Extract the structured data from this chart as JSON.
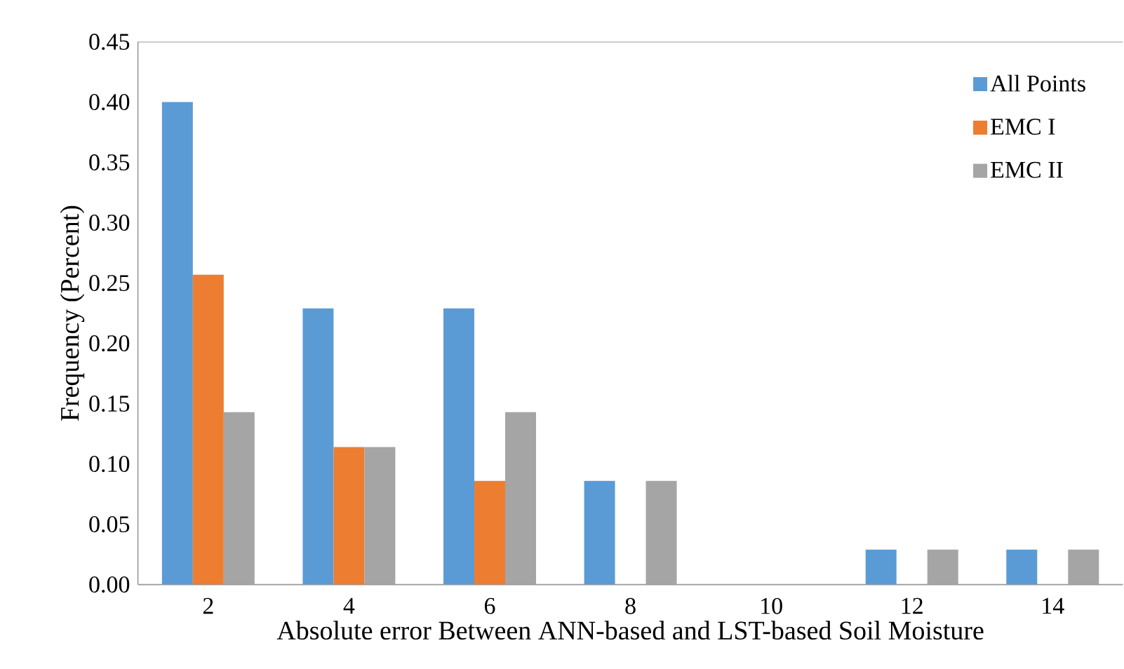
{
  "chart_data": {
    "type": "bar",
    "xlabel": "Absolute error Between ANN-based and LST-based Soil Moisture",
    "ylabel": "Frequency (Percent)",
    "categories": [
      "2",
      "4",
      "6",
      "8",
      "10",
      "12",
      "14"
    ],
    "series": [
      {
        "name": "All Points",
        "color": "#5b9bd5",
        "values": [
          0.4,
          0.229,
          0.229,
          0.086,
          0,
          0.029,
          0.029
        ]
      },
      {
        "name": "EMC I",
        "color": "#ed7d31",
        "values": [
          0.257,
          0.114,
          0.086,
          0,
          0,
          0,
          0
        ]
      },
      {
        "name": "EMC II",
        "color": "#a5a5a5",
        "values": [
          0.143,
          0.114,
          0.143,
          0.086,
          0,
          0.029,
          0.029
        ]
      }
    ],
    "ylim": [
      0,
      0.45
    ],
    "yticks": [
      {
        "value": 0,
        "label": "0.00"
      },
      {
        "value": 0.05,
        "label": "0.05"
      },
      {
        "value": 0.1,
        "label": "0.10"
      },
      {
        "value": 0.15,
        "label": "0.15"
      },
      {
        "value": 0.2,
        "label": "0.20"
      },
      {
        "value": 0.25,
        "label": "0.25"
      },
      {
        "value": 0.3,
        "label": "0.30"
      },
      {
        "value": 0.35,
        "label": "0.35"
      },
      {
        "value": 0.4,
        "label": "0.40"
      },
      {
        "value": 0.45,
        "label": "0.45"
      }
    ],
    "grid": false,
    "legend": "top right"
  }
}
